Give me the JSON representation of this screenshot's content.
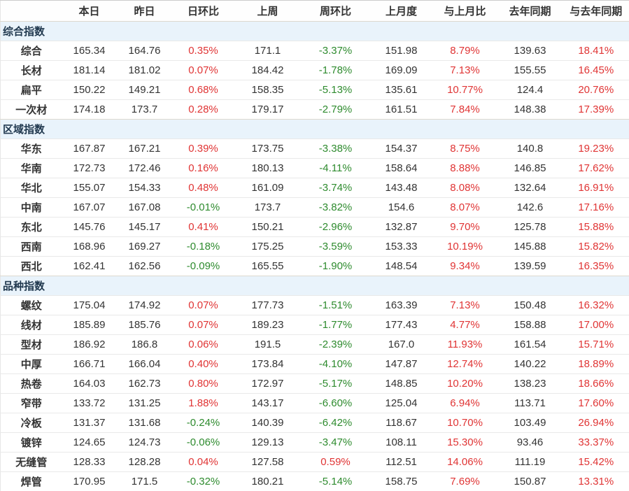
{
  "colors": {
    "positive_change": "#e03434",
    "negative_change": "#2e8b2e",
    "group_band_background": "#e9f3fb",
    "group_band_text": "#21394f",
    "body_text": "#333333"
  },
  "chart_data": {
    "type": "table",
    "title": "",
    "columns": [
      "",
      "本日",
      "昨日",
      "日环比",
      "上周",
      "周环比",
      "上月度",
      "与上月比",
      "去年同期",
      "与去年同期"
    ],
    "column_keys": [
      "name",
      "today",
      "yesterday",
      "day-change",
      "last-week",
      "week-change",
      "last-month",
      "vs-last-month",
      "last-year-same-period",
      "vs-last-year"
    ],
    "groups": [
      {
        "label": "综合指数",
        "rows": [
          {
            "label": "综合",
            "values": [
              "165.34",
              "164.76",
              "0.35%",
              "171.1",
              "-3.37%",
              "151.98",
              "8.79%",
              "139.63",
              "18.41%"
            ]
          },
          {
            "label": "长材",
            "values": [
              "181.14",
              "181.02",
              "0.07%",
              "184.42",
              "-1.78%",
              "169.09",
              "7.13%",
              "155.55",
              "16.45%"
            ]
          },
          {
            "label": "扁平",
            "values": [
              "150.22",
              "149.21",
              "0.68%",
              "158.35",
              "-5.13%",
              "135.61",
              "10.77%",
              "124.4",
              "20.76%"
            ]
          },
          {
            "label": "一次材",
            "values": [
              "174.18",
              "173.7",
              "0.28%",
              "179.17",
              "-2.79%",
              "161.51",
              "7.84%",
              "148.38",
              "17.39%"
            ]
          }
        ]
      },
      {
        "label": "区域指数",
        "rows": [
          {
            "label": "华东",
            "values": [
              "167.87",
              "167.21",
              "0.39%",
              "173.75",
              "-3.38%",
              "154.37",
              "8.75%",
              "140.8",
              "19.23%"
            ]
          },
          {
            "label": "华南",
            "values": [
              "172.73",
              "172.46",
              "0.16%",
              "180.13",
              "-4.11%",
              "158.64",
              "8.88%",
              "146.85",
              "17.62%"
            ]
          },
          {
            "label": "华北",
            "values": [
              "155.07",
              "154.33",
              "0.48%",
              "161.09",
              "-3.74%",
              "143.48",
              "8.08%",
              "132.64",
              "16.91%"
            ]
          },
          {
            "label": "中南",
            "values": [
              "167.07",
              "167.08",
              "-0.01%",
              "173.7",
              "-3.82%",
              "154.6",
              "8.07%",
              "142.6",
              "17.16%"
            ]
          },
          {
            "label": "东北",
            "values": [
              "145.76",
              "145.17",
              "0.41%",
              "150.21",
              "-2.96%",
              "132.87",
              "9.70%",
              "125.78",
              "15.88%"
            ]
          },
          {
            "label": "西南",
            "values": [
              "168.96",
              "169.27",
              "-0.18%",
              "175.25",
              "-3.59%",
              "153.33",
              "10.19%",
              "145.88",
              "15.82%"
            ]
          },
          {
            "label": "西北",
            "values": [
              "162.41",
              "162.56",
              "-0.09%",
              "165.55",
              "-1.90%",
              "148.54",
              "9.34%",
              "139.59",
              "16.35%"
            ]
          }
        ]
      },
      {
        "label": "品种指数",
        "rows": [
          {
            "label": "螺纹",
            "values": [
              "175.04",
              "174.92",
              "0.07%",
              "177.73",
              "-1.51%",
              "163.39",
              "7.13%",
              "150.48",
              "16.32%"
            ]
          },
          {
            "label": "线材",
            "values": [
              "185.89",
              "185.76",
              "0.07%",
              "189.23",
              "-1.77%",
              "177.43",
              "4.77%",
              "158.88",
              "17.00%"
            ]
          },
          {
            "label": "型材",
            "values": [
              "186.92",
              "186.8",
              "0.06%",
              "191.5",
              "-2.39%",
              "167.0",
              "11.93%",
              "161.54",
              "15.71%"
            ]
          },
          {
            "label": "中厚",
            "values": [
              "166.71",
              "166.04",
              "0.40%",
              "173.84",
              "-4.10%",
              "147.87",
              "12.74%",
              "140.22",
              "18.89%"
            ]
          },
          {
            "label": "热卷",
            "values": [
              "164.03",
              "162.73",
              "0.80%",
              "172.97",
              "-5.17%",
              "148.85",
              "10.20%",
              "138.23",
              "18.66%"
            ]
          },
          {
            "label": "窄带",
            "values": [
              "133.72",
              "131.25",
              "1.88%",
              "143.17",
              "-6.60%",
              "125.04",
              "6.94%",
              "113.71",
              "17.60%"
            ]
          },
          {
            "label": "冷板",
            "values": [
              "131.37",
              "131.68",
              "-0.24%",
              "140.39",
              "-6.42%",
              "118.67",
              "10.70%",
              "103.49",
              "26.94%"
            ]
          },
          {
            "label": "镀锌",
            "values": [
              "124.65",
              "124.73",
              "-0.06%",
              "129.13",
              "-3.47%",
              "108.11",
              "15.30%",
              "93.46",
              "33.37%"
            ]
          },
          {
            "label": "无缝管",
            "values": [
              "128.33",
              "128.28",
              "0.04%",
              "127.58",
              "0.59%",
              "112.51",
              "14.06%",
              "111.19",
              "15.42%"
            ]
          },
          {
            "label": "焊管",
            "values": [
              "170.95",
              "171.5",
              "-0.32%",
              "180.21",
              "-5.14%",
              "158.75",
              "7.69%",
              "150.87",
              "13.31%"
            ]
          }
        ]
      }
    ]
  }
}
